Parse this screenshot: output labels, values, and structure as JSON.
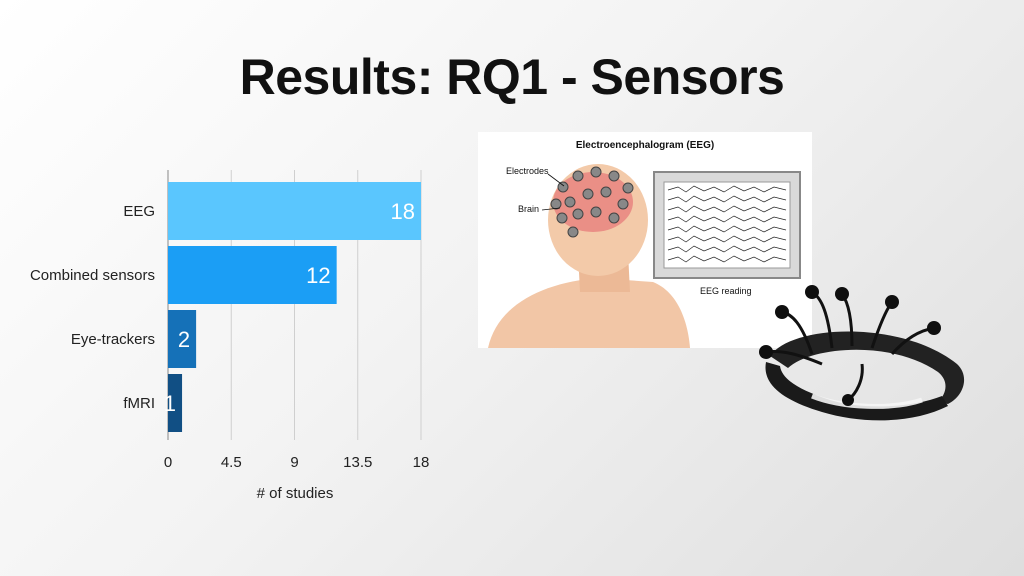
{
  "slide": {
    "title": "Results: RQ1 - Sensors"
  },
  "chart_data": {
    "type": "bar",
    "orientation": "horizontal",
    "categories": [
      "EEG",
      "Combined sensors",
      "Eye-trackers",
      "fMRI"
    ],
    "values": [
      18,
      12,
      2,
      1
    ],
    "xlabel": "# of studies",
    "ylabel": "",
    "xlim": [
      0,
      18
    ],
    "xticks": [
      "0",
      "4.5",
      "9",
      "13.5",
      "18"
    ],
    "grid": true,
    "legend": "none",
    "colors": [
      "#5ac6fe",
      "#1b9ef5",
      "#1571b8",
      "#114f84"
    ]
  },
  "eeg_illustration": {
    "title": "Electroencephalogram (EEG)",
    "labels": {
      "electrodes": "Electrodes",
      "brain": "Brain",
      "reading": "EEG reading"
    }
  },
  "icons": {
    "eeg_illustration": "eeg-head-illustration",
    "headset": "eeg-headset-photo"
  }
}
